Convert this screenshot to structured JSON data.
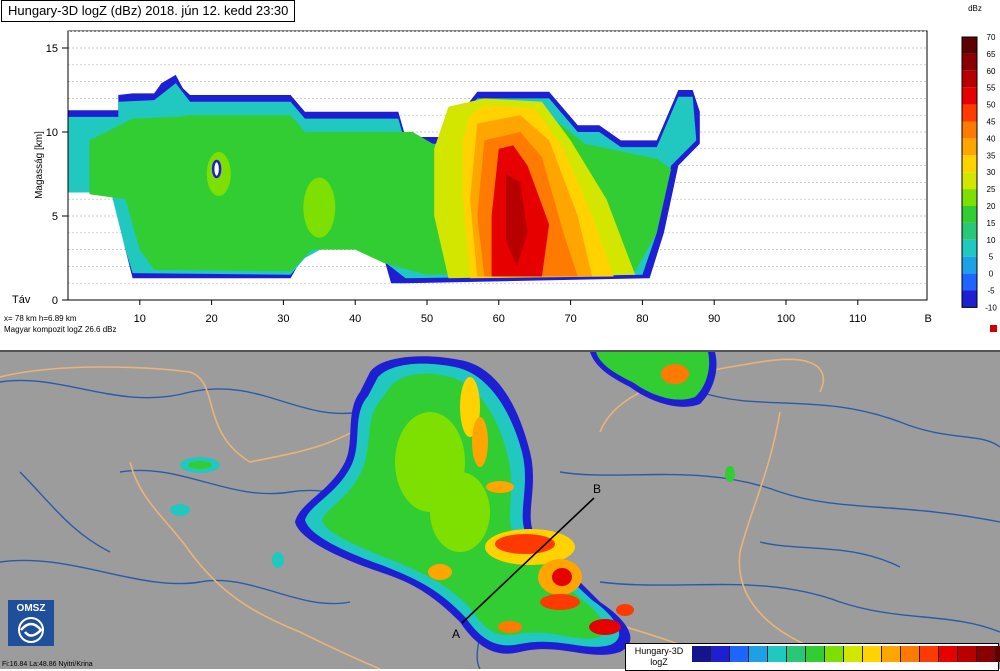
{
  "header": {
    "title": "Hungary-3D logZ (dBz) 2018. jún 12. kedd 23:30"
  },
  "cross_section": {
    "ylabel": "Magasság [km]",
    "distance_label": "Táv",
    "y_ticks": [
      "0",
      "5",
      "10",
      "15"
    ],
    "x_ticks": [
      "10",
      "20",
      "30",
      "40",
      "50",
      "60",
      "70",
      "80",
      "90",
      "100",
      "110",
      "B"
    ],
    "info_line_1": "x= 78 km h=6.89 km",
    "info_line_2": "Magyar kompozit logZ  26.6 dBz"
  },
  "colorbar": {
    "unit_label": "dBz",
    "levels": [
      "70",
      "65",
      "60",
      "55",
      "50",
      "45",
      "40",
      "35",
      "30",
      "25",
      "20",
      "15",
      "10",
      "5",
      "0",
      "-5",
      "-10"
    ]
  },
  "palette": [
    "#5c0000",
    "#8a0000",
    "#b80000",
    "#e60000",
    "#ff3a00",
    "#ff7a00",
    "#ffa500",
    "#ffd200",
    "#d2e600",
    "#7ee000",
    "#32cd32",
    "#28c878",
    "#20c8c0",
    "#1ea0e6",
    "#1e64ff",
    "#1e1ed2",
    "#14148c"
  ],
  "map": {
    "point_a": "A",
    "point_b": "B",
    "logo_text": "OMSZ",
    "footer": "Fi:16.84 La:48.86 Nyitri/Krina",
    "legend_title_1": "Hungary-3D",
    "legend_title_2": "logZ"
  }
}
